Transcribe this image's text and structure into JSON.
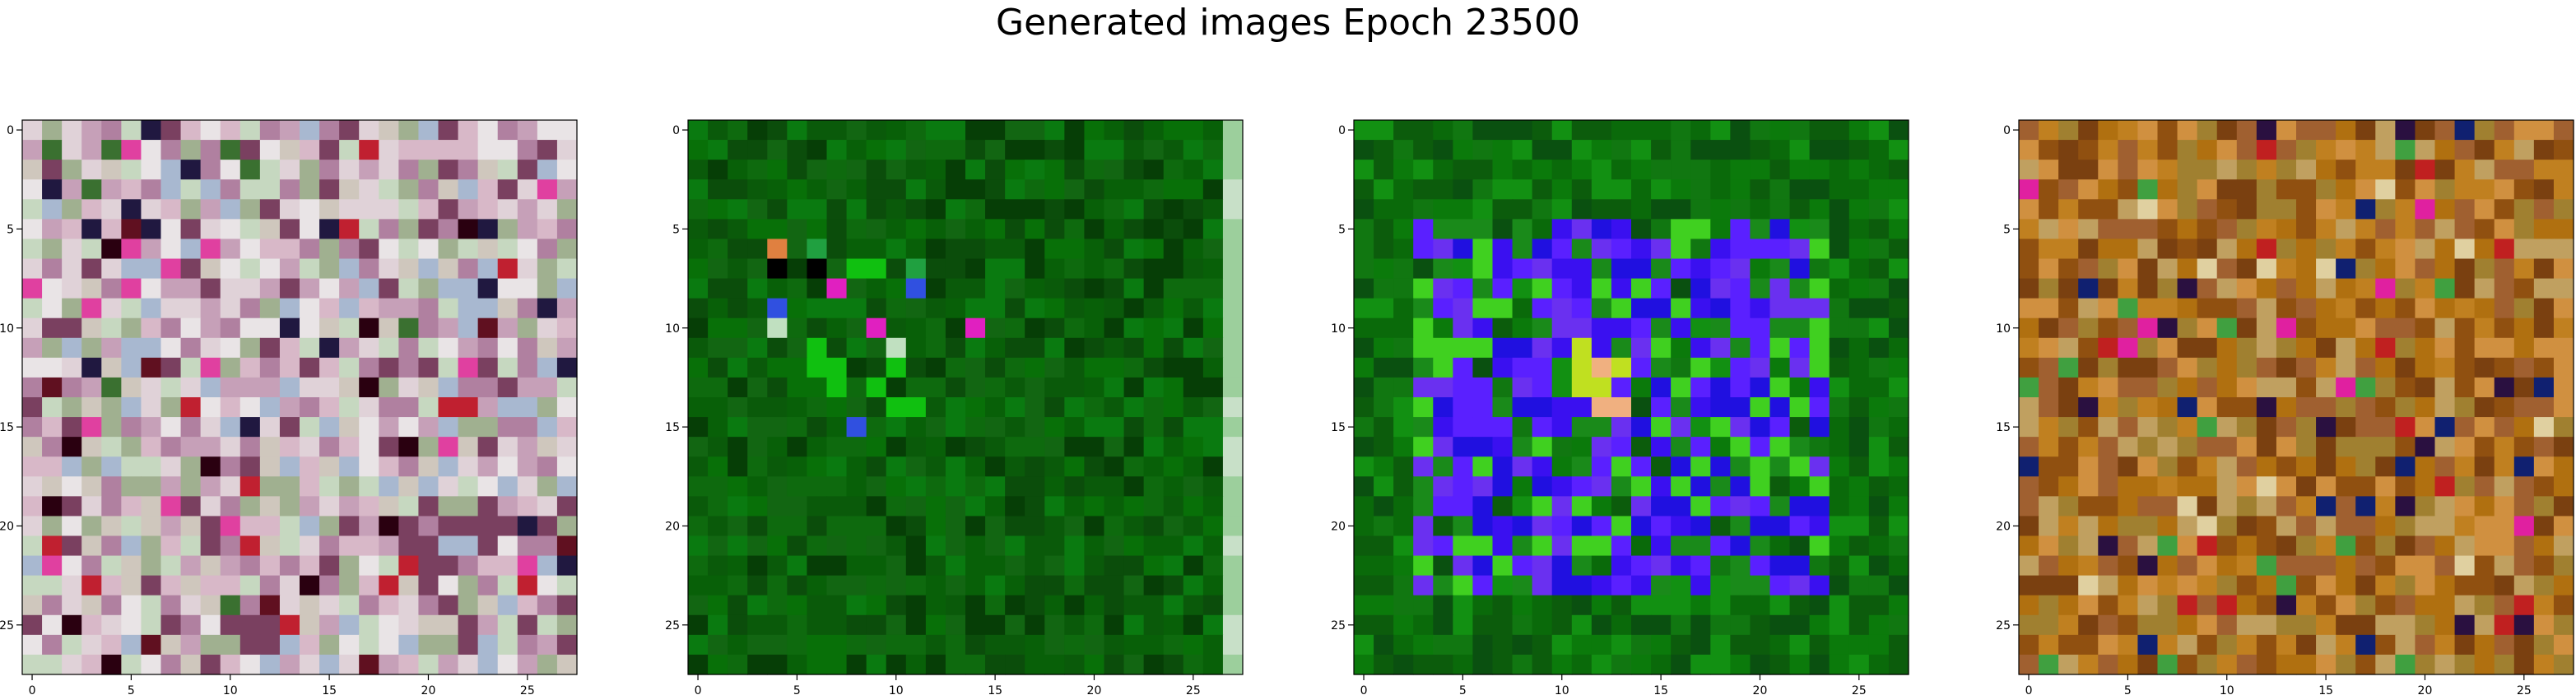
{
  "figure": {
    "title": "Generated images Epoch 23500"
  },
  "panels": [
    {
      "id": "img-1",
      "palette": [
        "#d8b8c8",
        "#c6a0b8",
        "#e0d2d8",
        "#a0b090",
        "#b080a0",
        "#cfc7bd",
        "#7a4060",
        "#c6d8c0",
        "#a8b8d0",
        "#e9e4e6"
      ],
      "accents": [
        "#2a0010",
        "#c02030",
        "#201840",
        "#3a7030",
        "#e040a0",
        "#601020"
      ]
    },
    {
      "id": "img-2",
      "palette": [
        "#0a5a0a",
        "#0e6a0e",
        "#087008",
        "#0b4d0b",
        "#126612",
        "#086008",
        "#0a7a10",
        "#063e06"
      ],
      "accents": [
        "#000000",
        "#20a040",
        "#3050e0",
        "#e08040",
        "#e020c0",
        "#c0e0c0"
      ]
    },
    {
      "id": "img-3",
      "palette": [
        "#0a6a0a",
        "#0b7a0b",
        "#117711",
        "#0c5c0c",
        "#129012",
        "#0a5010"
      ],
      "inner": [
        "#3a10f0",
        "#5a20ff",
        "#2010e0",
        "#6a30f0",
        "#1a8a1a",
        "#40d020"
      ],
      "accents": [
        "#c0e020",
        "#e0a0e0",
        "#f0b080",
        "#f09020"
      ]
    },
    {
      "id": "img-4",
      "palette": [
        "#c08020",
        "#b07010",
        "#905010",
        "#d09040",
        "#a06030",
        "#c0a060",
        "#7a4010",
        "#a08030"
      ],
      "accents": [
        "#2a1040",
        "#e0d0a0",
        "#40a040",
        "#e020a0",
        "#102070",
        "#c02020"
      ]
    }
  ],
  "axes": {
    "ticks": [
      "0",
      "5",
      "10",
      "15",
      "20",
      "25"
    ],
    "tick_values": [
      0,
      5,
      10,
      15,
      20,
      25
    ],
    "extent": [
      -0.5,
      27.5
    ]
  }
}
